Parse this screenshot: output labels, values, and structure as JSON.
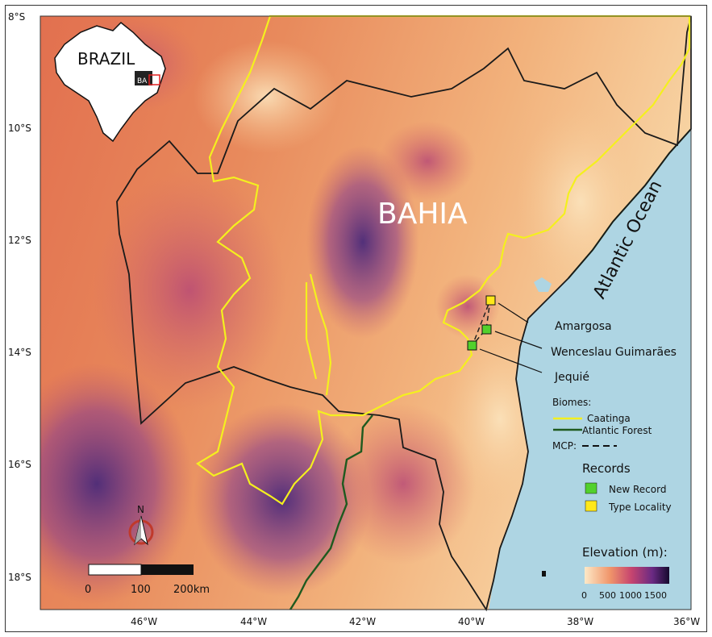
{
  "map": {
    "region_label": "BAHIA",
    "ocean_label": "Atlantic Ocean",
    "inset": {
      "country_label": "BRAZIL",
      "state_label": "BA"
    },
    "lat_ticks": [
      "8°S",
      "10°S",
      "12°S",
      "14°S",
      "16°S",
      "18°S"
    ],
    "lon_ticks": [
      "46°W",
      "44°W",
      "42°W",
      "40°W",
      "38°W",
      "36°W"
    ],
    "localities": [
      {
        "name": "Amargosa",
        "record": "Type Locality"
      },
      {
        "name": "Wenceslau Guimarães",
        "record": "New Record"
      },
      {
        "name": "Jequié",
        "record": "New Record"
      }
    ],
    "north_label": "N",
    "scale": {
      "labels": [
        "0",
        "100",
        "200km"
      ]
    }
  },
  "legend": {
    "biomes_title": "Biomes:",
    "biomes": [
      {
        "name": "Caatinga",
        "color": "#f4f01e"
      },
      {
        "name": "Atlantic Forest",
        "color": "#1f5a1f"
      }
    ],
    "mcp_label": "MCP:",
    "records_title": "Records",
    "records": [
      {
        "name": "New Record",
        "color": "#52d12c"
      },
      {
        "name": "Type Locality",
        "color": "#ffe81a"
      }
    ],
    "elevation_title": "Elevation (m):",
    "elevation_ticks": [
      "0",
      "500",
      "1000",
      "1500"
    ]
  },
  "colors": {
    "ocean": "#aed5e3",
    "border": "#111111",
    "caatinga": "#f4f01e",
    "atlantic_forest": "#1f5a1f"
  }
}
